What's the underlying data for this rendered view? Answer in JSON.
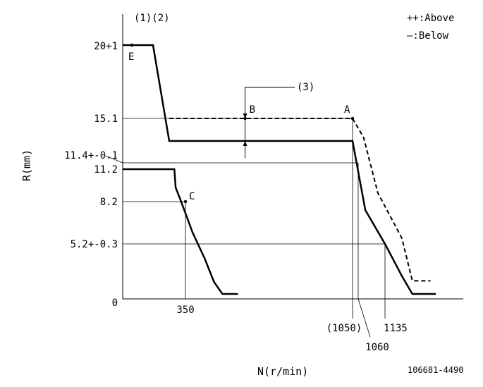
{
  "chart_data": {
    "type": "line",
    "xlabel": "N(r/min)",
    "ylabel": "R(mm)",
    "header_label": "(1)(2)",
    "callout_label": "(3)",
    "figure_code": "106681-4490",
    "legend": [
      {
        "label": "++:Above"
      },
      {
        "label": "—:Below"
      }
    ],
    "x_tick_labels": [
      "350",
      "(1050)",
      "1060",
      "1135"
    ],
    "y_tick_labels": [
      "0",
      "5.2+-0.3",
      "8.2",
      "11.2",
      "11.4+-0.1",
      "15.1",
      "20+1"
    ],
    "x_ticks": [
      350,
      1050,
      1060,
      1135
    ],
    "y_ticks": [
      0,
      5.2,
      8.2,
      11.2,
      11.4,
      15.1,
      20
    ],
    "points": [
      {
        "label": "E",
        "x": 30,
        "y": 20
      },
      {
        "label": "A",
        "x": 1050,
        "y": 15.1
      },
      {
        "label": "B",
        "x": 600,
        "y": 15.1
      },
      {
        "label": "C",
        "x": 350,
        "y": 8.2
      }
    ],
    "series": [
      {
        "style": "solid",
        "x": [
          0,
          100,
          160,
          1050,
          1080,
          1135,
          1200,
          1240,
          1330
        ],
        "y": [
          20,
          20,
          13.2,
          13.2,
          7.6,
          5.2,
          2.5,
          1.0,
          1.0
        ]
      },
      {
        "style": "dashed",
        "x": [
          160,
          1050,
          1075,
          1115,
          1200,
          1240,
          1310
        ],
        "y": [
          15.1,
          15.1,
          13.5,
          9.0,
          5.6,
          2.1,
          2.1
        ]
      },
      {
        "style": "solid",
        "x": [
          0,
          220,
          235,
          300,
          380,
          430,
          470,
          505,
          570
        ],
        "y": [
          11.2,
          11.2,
          9.5,
          8.2,
          6.0,
          4.0,
          2.0,
          1.0,
          1.0
        ]
      }
    ]
  }
}
